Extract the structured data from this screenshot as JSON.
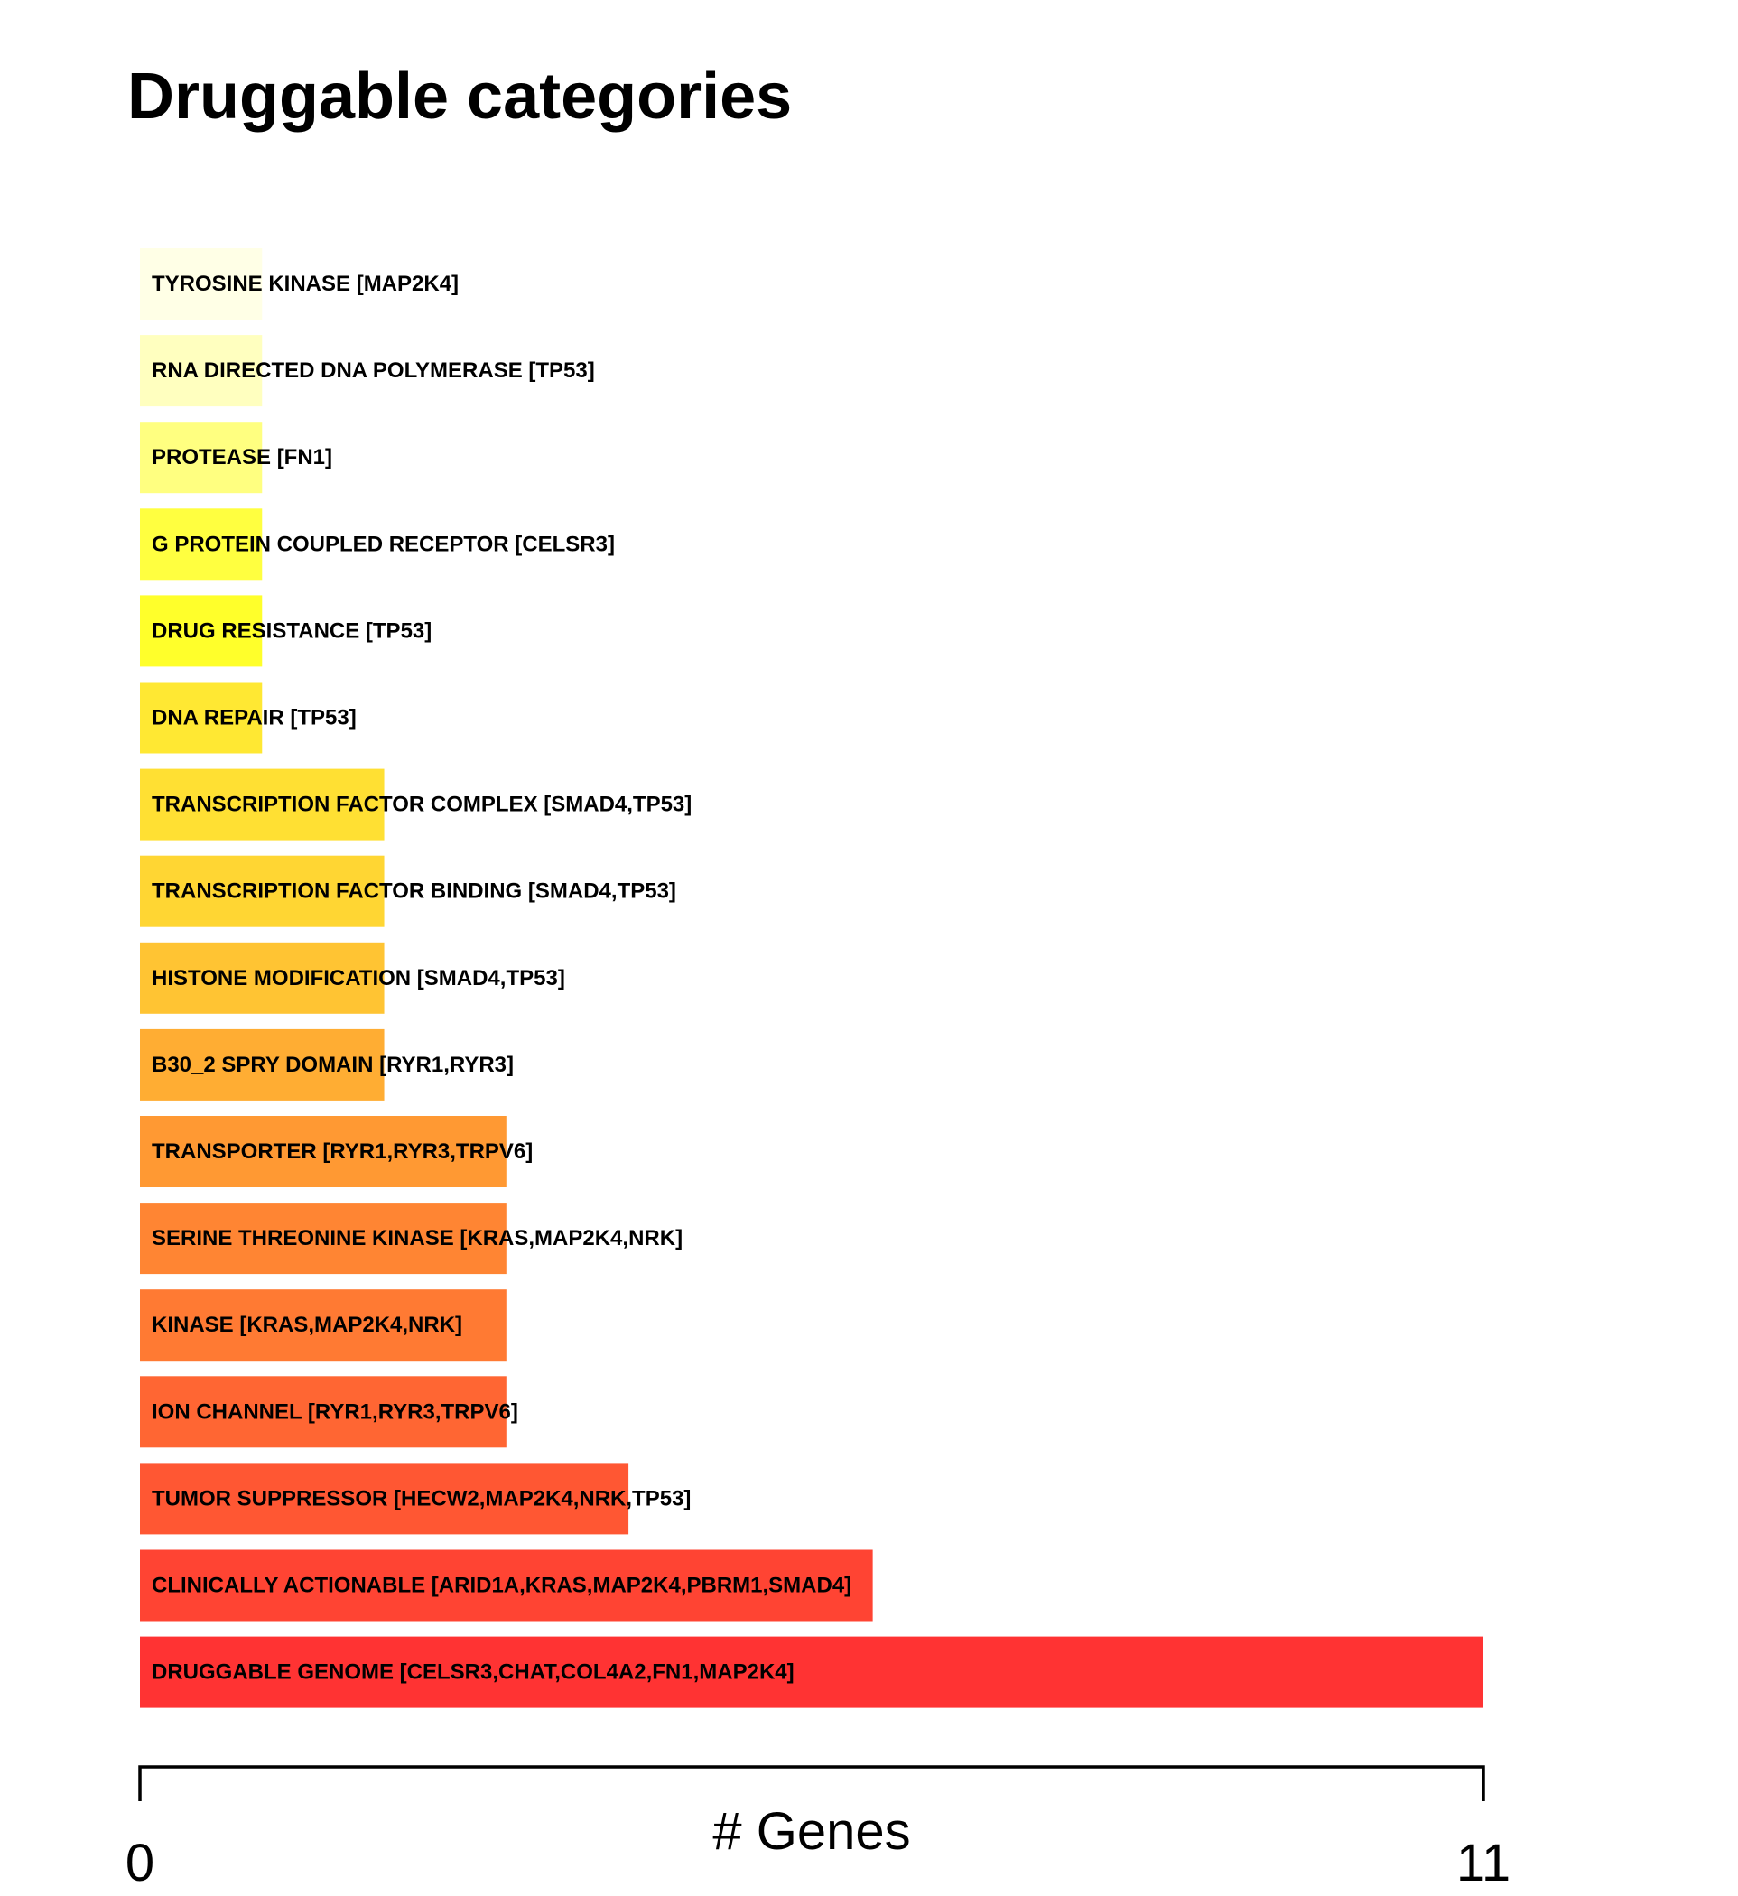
{
  "chart_data": {
    "type": "bar",
    "orientation": "horizontal",
    "title": "Druggable categories",
    "xlabel": "# Genes",
    "ylabel": "",
    "xlim": [
      0,
      11
    ],
    "x_ticks": [
      "0",
      "11"
    ],
    "grid": false,
    "legend": "none",
    "categories": [
      "TYROSINE KINASE [MAP2K4]",
      "RNA DIRECTED DNA POLYMERASE [TP53]",
      "PROTEASE [FN1]",
      "G PROTEIN COUPLED RECEPTOR [CELSR3]",
      "DRUG RESISTANCE [TP53]",
      "DNA REPAIR [TP53]",
      "TRANSCRIPTION FACTOR COMPLEX [SMAD4,TP53]",
      "TRANSCRIPTION FACTOR BINDING [SMAD4,TP53]",
      "HISTONE MODIFICATION [SMAD4,TP53]",
      "B30_2 SPRY DOMAIN [RYR1,RYR3]",
      "TRANSPORTER [RYR1,RYR3,TRPV6]",
      "SERINE THREONINE KINASE [KRAS,MAP2K4,NRK]",
      "KINASE [KRAS,MAP2K4,NRK]",
      "ION CHANNEL [RYR1,RYR3,TRPV6]",
      "TUMOR SUPPRESSOR [HECW2,MAP2K4,NRK,TP53]",
      "CLINICALLY ACTIONABLE [ARID1A,KRAS,MAP2K4,PBRM1,SMAD4]",
      "DRUGGABLE GENOME [CELSR3,CHAT,COL4A2,FN1,MAP2K4]"
    ],
    "values": [
      1,
      1,
      1,
      1,
      1,
      1,
      2,
      2,
      2,
      2,
      3,
      3,
      3,
      3,
      4,
      6,
      11
    ],
    "colors": [
      "#FFFFE6",
      "#FFFFBF",
      "#FFFF80",
      "#FFFF40",
      "#FFFF2B",
      "#FFE833",
      "#FFE033",
      "#FFD633",
      "#FFC433",
      "#FFAD33",
      "#FF9933",
      "#FF8533",
      "#FF7A33",
      "#FF6633",
      "#FF5733",
      "#FF4433",
      "#FF3333"
    ]
  }
}
